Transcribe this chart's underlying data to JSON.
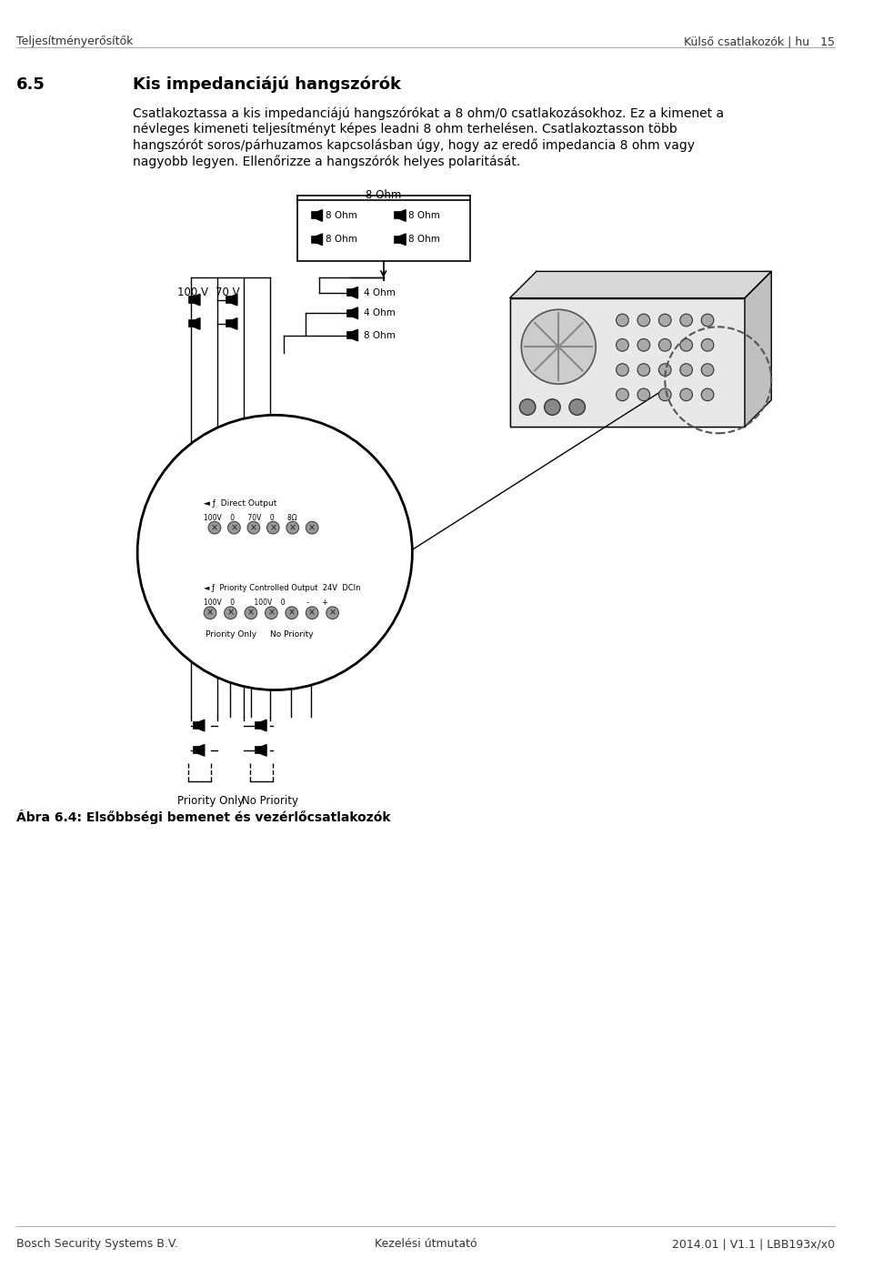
{
  "header_left": "Teljesítményerősítők",
  "header_right": "Külső csatlakozók | hu",
  "header_page": "15",
  "section_num": "6.5",
  "section_title": "Kis impedanciájú hangszórók",
  "para1": "Csatlakoztassa a kis impedanciájú hangszórókat a 8 ohm/0 csatlakozásokhoz. Ez a kimenet a",
  "para2": "névleges kimeneti teljesítményt képes leadni 8 ohm terhelésen. Csatlakoztasson több",
  "para3": "hangszórót soros/párhuzamos kapcsolásban úgy, hogy az eredő impedancia 8 ohm vagy",
  "para4": "nagyobb legyen. Ellenőrizze a hangszórók helyes polaritását.",
  "fig_caption": "Ábra 6.4: Elsőbbségi bemenet és vezérlőcsatlakozók",
  "footer_left": "Bosch Security Systems B.V.",
  "footer_center": "Kezelési útmutató",
  "footer_right": "2014.01 | V1.1 | LBB193x/x0",
  "bg_color": "#ffffff"
}
